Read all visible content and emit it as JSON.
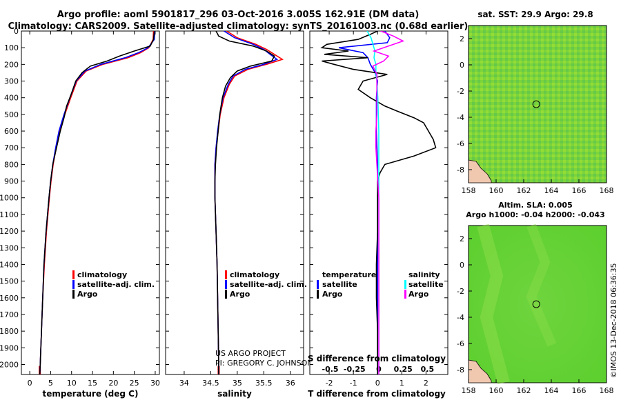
{
  "header": {
    "line1": "Argo profile: aoml 5901817_296 03-Oct-2016 3.005S 162.91E (DM data)",
    "line2": "Climatology: CARS2009. Satellite-adjusted climatology: synTS_20161003.nc (0.68d earlier)"
  },
  "footer": {
    "credit1": "US ARGO PROJECT",
    "credit2": "PI: GREGORY C. JOHNSON",
    "imos": "©IMOS 13-Dec-2018 06:36:35"
  },
  "colors": {
    "climatology": "#ff0000",
    "satellite": "#0000ff",
    "argo": "#000000",
    "sat_salinity": "#00ffff",
    "argo_salinity": "#ff00ff"
  },
  "depth_ticks": [
    0,
    100,
    200,
    300,
    400,
    500,
    600,
    700,
    800,
    900,
    1000,
    1100,
    1200,
    1300,
    1400,
    1500,
    1600,
    1700,
    1800,
    1900,
    2000
  ],
  "chart_data": [
    {
      "type": "line",
      "name": "temperature",
      "xlabel": "temperature (deg C)",
      "xlim": [
        -2,
        31
      ],
      "ylim": [
        0,
        2060
      ],
      "xticks": [
        "0",
        "5",
        "10",
        "15",
        "20",
        "25",
        "30"
      ],
      "xtick_values": [
        0,
        5,
        10,
        15,
        20,
        25,
        30
      ],
      "legend": [
        "climatology",
        "satellite-adj. clim.",
        "Argo"
      ],
      "series": [
        {
          "name": "climatology",
          "color": "#ff0000",
          "depth": [
            0,
            50,
            100,
            130,
            160,
            200,
            240,
            300,
            400,
            500,
            600,
            700,
            800,
            900,
            1000,
            1200,
            1400,
            1600,
            1800,
            2000,
            2060
          ],
          "values": [
            29.6,
            29.5,
            28.5,
            26.5,
            23.5,
            17.5,
            13.5,
            11.3,
            9.8,
            8.4,
            7.2,
            6.3,
            5.6,
            5.1,
            4.7,
            4.0,
            3.5,
            3.1,
            2.8,
            2.5,
            2.4
          ]
        },
        {
          "name": "satellite-adj. clim.",
          "color": "#0000ff",
          "depth": [
            0,
            50,
            100,
            130,
            160,
            200,
            240,
            300,
            400,
            500,
            600,
            700,
            800,
            900,
            1000,
            1200,
            1400,
            1600,
            1800,
            2000,
            2060
          ],
          "values": [
            29.9,
            29.8,
            28.3,
            26,
            22.8,
            17,
            13.2,
            11.1,
            9.6,
            8.2,
            7,
            6.2,
            5.5,
            5,
            4.6,
            3.9,
            3.4,
            3.1,
            2.8,
            2.5,
            2.4
          ]
        },
        {
          "name": "Argo",
          "color": "#000000",
          "depth": [
            0,
            50,
            90,
            120,
            150,
            180,
            210,
            250,
            300,
            380,
            450,
            520,
            600,
            700,
            800,
            900,
            1000,
            1200,
            1400,
            1600,
            1800,
            2000,
            2060
          ],
          "values": [
            29.8,
            29.6,
            28.8,
            25,
            21.5,
            18.5,
            14.5,
            12.5,
            11,
            9.9,
            8.8,
            8.2,
            7.3,
            6.4,
            5.5,
            5,
            4.6,
            3.9,
            3.4,
            3.1,
            2.8,
            2.5,
            2.4
          ]
        }
      ]
    },
    {
      "type": "line",
      "name": "salinity",
      "xlabel": "salinity",
      "xlim": [
        33.65,
        36.25
      ],
      "ylim": [
        0,
        2060
      ],
      "xticks": [
        "34",
        "34.5",
        "35",
        "35.5",
        "36"
      ],
      "xtick_values": [
        34,
        34.5,
        35,
        35.5,
        36
      ],
      "legend": [
        "climatology",
        "satellite-adj. clim.",
        "Argo"
      ],
      "series": [
        {
          "name": "climatology",
          "color": "#ff0000",
          "depth": [
            0,
            40,
            80,
            110,
            140,
            170,
            200,
            230,
            270,
            320,
            400,
            500,
            600,
            700,
            800,
            900,
            1000,
            1200,
            1400,
            1600,
            1800,
            2000,
            2060
          ],
          "values": [
            34.8,
            35,
            35.35,
            35.55,
            35.7,
            35.85,
            35.55,
            35.2,
            34.95,
            34.85,
            34.75,
            34.68,
            34.64,
            34.6,
            34.58,
            34.58,
            34.58,
            34.6,
            34.62,
            34.63,
            34.64,
            34.65,
            34.65
          ]
        },
        {
          "name": "satellite-adj. clim.",
          "color": "#0000ff",
          "depth": [
            0,
            40,
            80,
            110,
            140,
            170,
            200,
            230,
            270,
            320,
            400,
            500,
            600,
            700,
            800,
            900,
            1000,
            1200,
            1400,
            1600,
            1800,
            2000,
            2060
          ],
          "values": [
            34.75,
            34.95,
            35.3,
            35.5,
            35.62,
            35.75,
            35.5,
            35.15,
            34.92,
            34.83,
            34.73,
            34.67,
            34.63,
            34.6,
            34.58,
            34.58,
            34.58,
            34.6,
            34.62,
            34.63,
            34.64,
            34.65,
            34.65
          ]
        },
        {
          "name": "Argo",
          "color": "#000000",
          "depth": [
            0,
            30,
            60,
            90,
            120,
            150,
            180,
            210,
            240,
            280,
            330,
            400,
            500,
            600,
            700,
            800,
            900,
            1000,
            1200,
            1400,
            1600,
            1800,
            2000,
            2060
          ],
          "values": [
            34.6,
            34.65,
            34.85,
            35.3,
            35.55,
            35.7,
            35.65,
            35.25,
            35,
            34.87,
            34.78,
            34.72,
            34.67,
            34.64,
            34.61,
            34.59,
            34.58,
            34.58,
            34.6,
            34.62,
            34.63,
            34.64,
            34.65,
            34.65
          ]
        }
      ]
    },
    {
      "type": "line",
      "name": "difference",
      "xlabel": "T difference from climatology",
      "xlabel_top": "S difference from climatology",
      "xlim": [
        -2.8,
        2.9
      ],
      "ylim": [
        0,
        2060
      ],
      "xticks": [
        "-2",
        "-1",
        "0",
        "1",
        "2"
      ],
      "xtick_values": [
        -2,
        -1,
        0,
        1,
        2
      ],
      "s_ticks": [
        "-0.5",
        "-0.25",
        "0",
        "0.25",
        "0.5"
      ],
      "s_tick_values": [
        -0.5,
        -0.25,
        0,
        0.25,
        0.5
      ],
      "legend_left_title": "temperature",
      "legend_right_title": "salinity",
      "legend_left": [
        "satellite",
        "Argo"
      ],
      "legend_right": [
        "satellite",
        "Argo"
      ],
      "series": [
        {
          "name": "T satellite",
          "color": "#0000ff",
          "depth": [
            0,
            40,
            70,
            100,
            130,
            160,
            200,
            250,
            300,
            400,
            600,
            800,
            1000,
            1400,
            1800,
            2060
          ],
          "values": [
            0.3,
            0.5,
            0.4,
            -1.6,
            -0.6,
            -0.4,
            -0.3,
            -0.1,
            0,
            -0.05,
            -0.05,
            0,
            0,
            0,
            0,
            0
          ]
        },
        {
          "name": "T Argo",
          "color": "#000000",
          "depth": [
            0,
            20,
            50,
            80,
            100,
            120,
            140,
            160,
            180,
            200,
            230,
            260,
            300,
            350,
            400,
            450,
            480,
            520,
            550,
            600,
            650,
            700,
            750,
            800,
            850,
            900,
            1000,
            1200,
            1400,
            1600,
            1800,
            2000,
            2060
          ],
          "values": [
            0,
            -0.3,
            -0.8,
            -2.1,
            -2.3,
            -1.2,
            -2.2,
            -0.4,
            -2.3,
            -1.8,
            -1,
            0.4,
            -0.6,
            -0.8,
            -0.3,
            0.3,
            0.8,
            1.5,
            1.9,
            2.1,
            2.3,
            2.4,
            1.5,
            0.3,
            0.1,
            0,
            0,
            0,
            -0.05,
            -0.05,
            0,
            0,
            0
          ]
        },
        {
          "name": "S satellite",
          "color": "#00ffff",
          "depth": [
            0,
            40,
            80,
            120,
            160,
            200,
            250,
            300,
            400,
            600,
            800,
            1000,
            1400,
            1800,
            2060
          ],
          "values": [
            -0.12,
            -0.08,
            -0.06,
            -0.04,
            -0.05,
            -0.03,
            -0.03,
            -0.02,
            -0.01,
            0,
            0,
            0,
            0,
            0,
            0
          ]
        },
        {
          "name": "S Argo",
          "color": "#ff00ff",
          "depth": [
            0,
            30,
            60,
            90,
            120,
            150,
            180,
            210,
            260,
            300,
            400,
            500,
            600,
            700,
            800,
            900,
            1000,
            1400,
            1800,
            2060
          ],
          "values": [
            0.02,
            0.15,
            0.25,
            0.1,
            -0.05,
            0.1,
            0.05,
            -0.06,
            -0.02,
            -0.02,
            -0.02,
            -0.02,
            -0.03,
            -0.03,
            -0.02,
            -0.01,
            0,
            0,
            0,
            0
          ]
        }
      ]
    },
    {
      "type": "heatmap",
      "name": "SST map",
      "title": "sat. SST: 29.9 Argo: 29.8",
      "xticks": [
        "158",
        "160",
        "162",
        "164",
        "166",
        "168"
      ],
      "yticks": [
        "2",
        "0",
        "-2",
        "-4",
        "-6",
        "-8"
      ],
      "xlim": [
        158,
        168
      ],
      "ylim": [
        -9,
        3
      ],
      "marker": {
        "lon": 162.91,
        "lat": -3.005
      }
    },
    {
      "type": "heatmap",
      "name": "SLA map",
      "title": "Altim. SLA: 0.005",
      "subtitle": "Argo h1000: -0.04 h2000: -0.043",
      "xticks": [
        "158",
        "160",
        "162",
        "164",
        "166",
        "168"
      ],
      "yticks": [
        "2",
        "0",
        "-2",
        "-4",
        "-6",
        "-8"
      ],
      "xlim": [
        158,
        168
      ],
      "ylim": [
        -9,
        3
      ],
      "marker": {
        "lon": 162.91,
        "lat": -3.005
      }
    }
  ]
}
